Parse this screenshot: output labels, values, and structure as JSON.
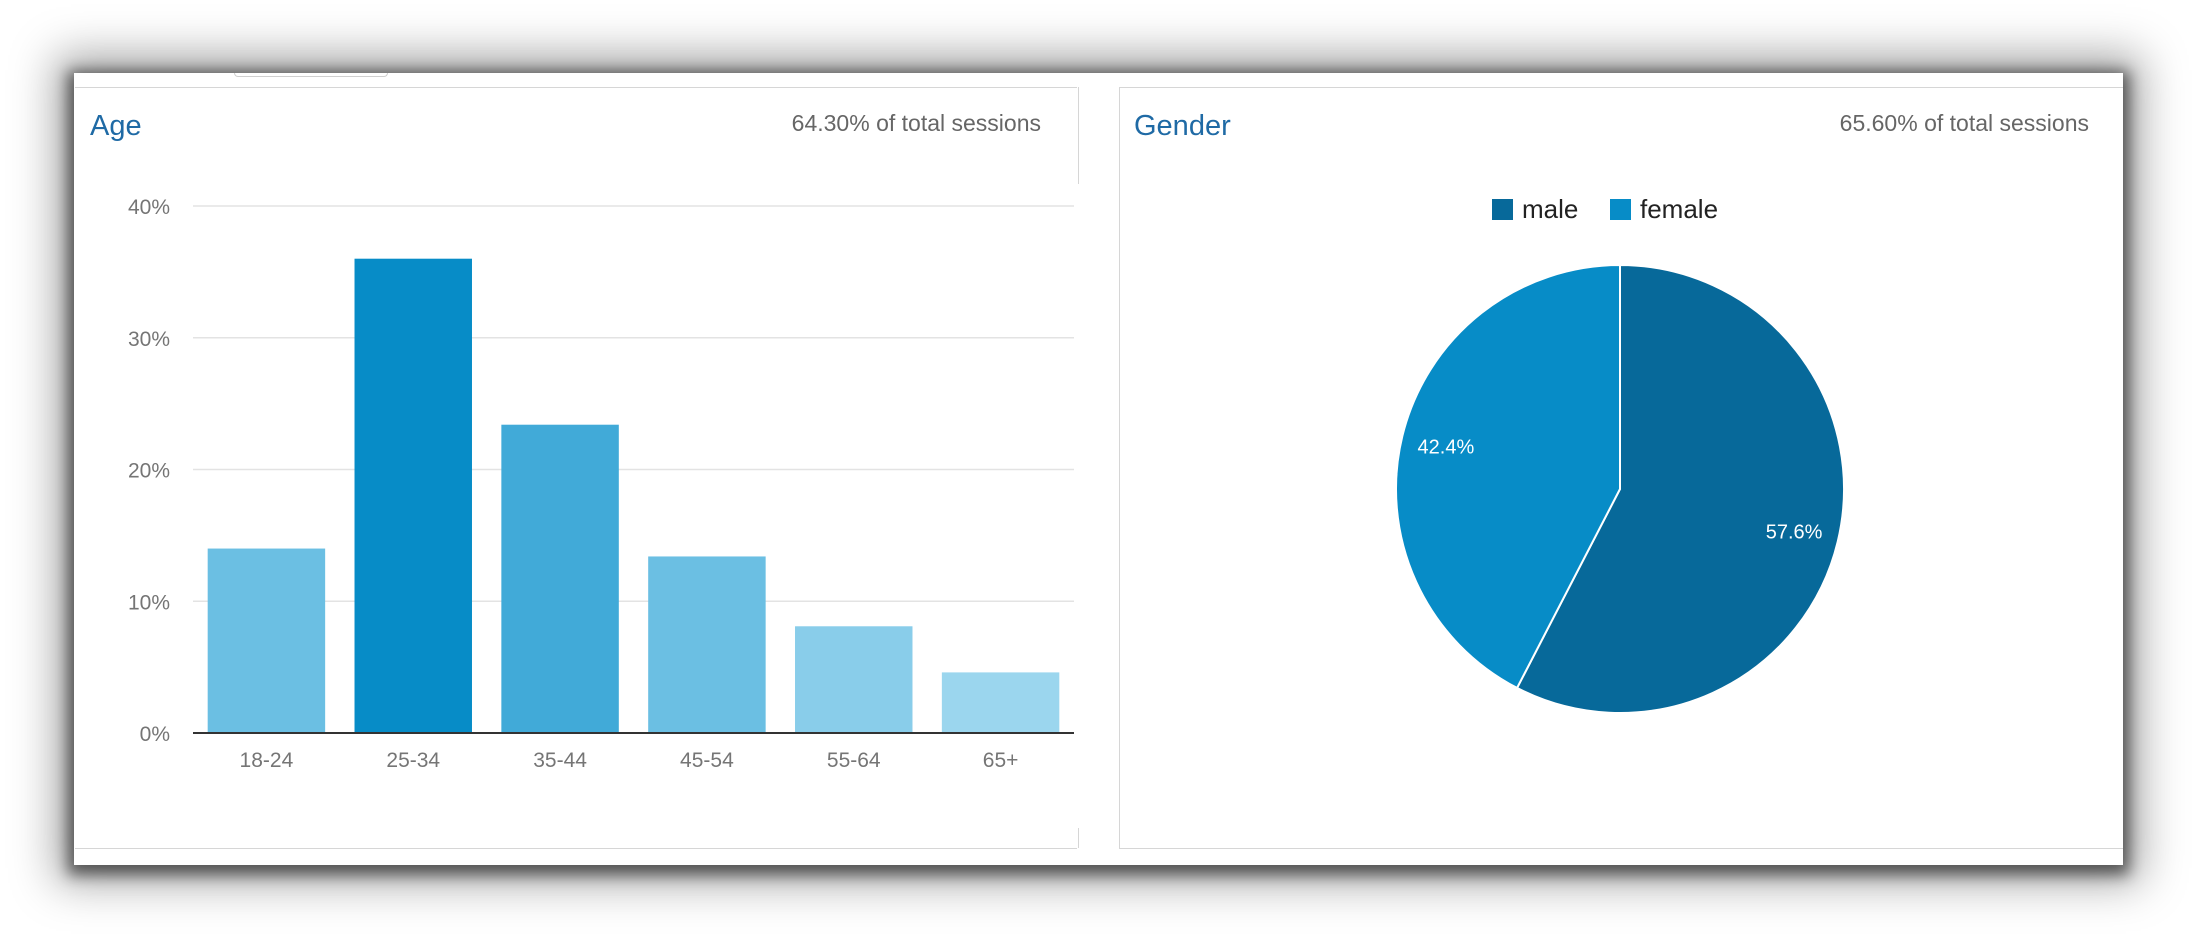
{
  "age_panel": {
    "title": "Age",
    "subtitle": "64.30% of total sessions"
  },
  "gender_panel": {
    "title": "Gender",
    "subtitle": "65.60% of total sessions"
  },
  "colors": {
    "title_blue": "#1f6aa5",
    "male": "#07699a",
    "female": "#078cc7",
    "bar_25_34": "#078cc7",
    "bar_35_44": "#41aad8",
    "bar_18_24": "#6bbfe3",
    "bar_55_64": "#89cdea",
    "bar_65_plus": "#9bd6ee"
  },
  "chart_data": [
    {
      "type": "bar",
      "title": "Age",
      "categories": [
        "18-24",
        "25-34",
        "35-44",
        "45-54",
        "55-64",
        "65+"
      ],
      "values": [
        14.0,
        36.0,
        23.4,
        13.4,
        8.1,
        4.6
      ],
      "bar_colors": [
        "#6bbfe3",
        "#078cc7",
        "#41aad8",
        "#6bbfe3",
        "#89cdea",
        "#9bd6ee"
      ],
      "yticks": [
        "0%",
        "10%",
        "20%",
        "30%",
        "40%"
      ],
      "ylim": [
        0,
        40
      ],
      "grid": true,
      "xlabel": "",
      "ylabel": ""
    },
    {
      "type": "pie",
      "title": "Gender",
      "categories": [
        "male",
        "female"
      ],
      "values": [
        57.6,
        42.4
      ],
      "labels": [
        "57.6%",
        "42.4%"
      ],
      "colors": [
        "#07699a",
        "#078cc7"
      ],
      "legend": "top"
    }
  ]
}
